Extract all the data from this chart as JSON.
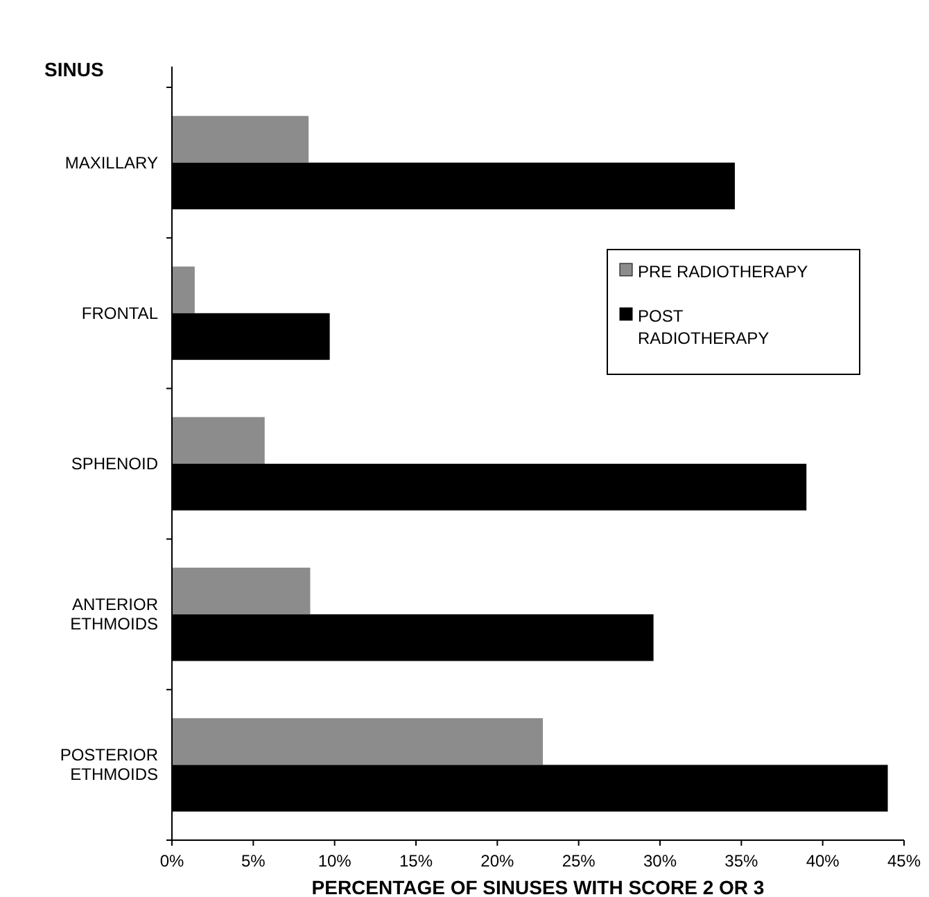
{
  "chart_data": {
    "type": "bar",
    "orientation": "horizontal",
    "ylabel": "SINUS",
    "xlabel": "PERCENTAGE OF SINUSES WITH SCORE 2 OR 3",
    "categories": [
      "MAXILLARY",
      "FRONTAL",
      "SPHENOID",
      "ANTERIOR ETHMOIDS",
      "POSTERIOR ETHMOIDS"
    ],
    "series": [
      {
        "name": "PRE RADIOTHERAPY",
        "color": "#8c8c8c",
        "values": [
          8.4,
          1.4,
          5.7,
          8.5,
          22.8
        ]
      },
      {
        "name": "POST RADIOTHERAPY",
        "color": "#000000",
        "values": [
          34.6,
          9.7,
          39.0,
          29.6,
          44.0
        ]
      }
    ],
    "xlim": [
      0,
      45
    ],
    "xticks": [
      {
        "value": 0,
        "label": "0%"
      },
      {
        "value": 5,
        "label": "5%"
      },
      {
        "value": 10,
        "label": "10%"
      },
      {
        "value": 15,
        "label": "15%"
      },
      {
        "value": 20,
        "label": "20%"
      },
      {
        "value": 25,
        "label": "25%"
      },
      {
        "value": 30,
        "label": "30%"
      },
      {
        "value": 35,
        "label": "35%"
      },
      {
        "value": 40,
        "label": "40%"
      },
      {
        "value": 45,
        "label": "45%"
      }
    ],
    "legend": "right",
    "grid": false
  }
}
